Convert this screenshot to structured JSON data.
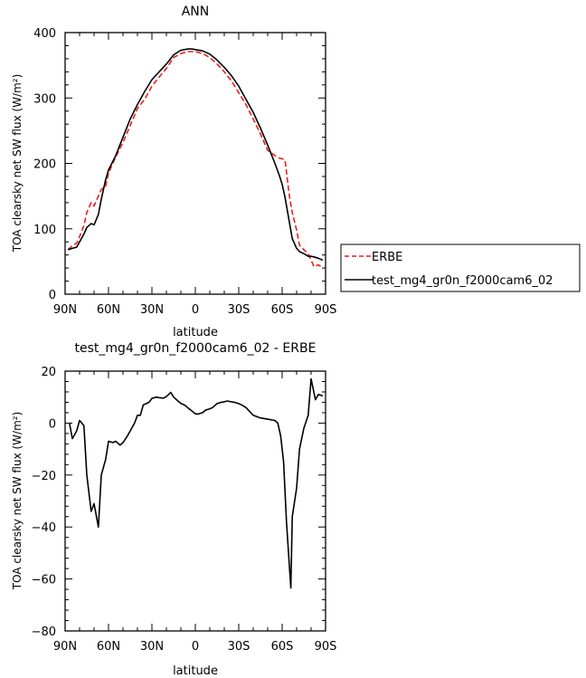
{
  "chart_data": [
    {
      "type": "line",
      "title": "ANN",
      "xlabel": "latitude",
      "ylabel": "TOA clearsky net SW flux (W/m²)",
      "xlim": [
        90,
        -90
      ],
      "ylim": [
        0,
        400
      ],
      "xticks": [
        90,
        60,
        30,
        0,
        -30,
        -60,
        -90
      ],
      "xtick_labels": [
        "90N",
        "60N",
        "30N",
        "0",
        "30S",
        "60S",
        "90S"
      ],
      "yticks": [
        0,
        100,
        200,
        300,
        400
      ],
      "ytick_labels": [
        "0",
        "100",
        "200",
        "300",
        "400"
      ],
      "legend_position": "right",
      "series": [
        {
          "name": "ERBE",
          "color": "#e8201c",
          "dash": "dashed",
          "x": [
            88,
            85,
            82,
            80,
            77,
            75,
            72,
            70,
            67,
            65,
            62,
            60,
            55,
            50,
            45,
            40,
            35,
            30,
            25,
            20,
            15,
            10,
            5,
            0,
            -5,
            -10,
            -15,
            -20,
            -25,
            -30,
            -35,
            -40,
            -45,
            -50,
            -55,
            -58,
            -60,
            -62,
            -65,
            -67,
            -70,
            -72,
            -75,
            -78,
            -80,
            -82,
            -85,
            -88
          ],
          "y": [
            68,
            74,
            78,
            88,
            105,
            125,
            140,
            135,
            150,
            160,
            165,
            185,
            210,
            232,
            258,
            284,
            298,
            318,
            332,
            345,
            362,
            368,
            371,
            371,
            368,
            362,
            352,
            340,
            326,
            308,
            290,
            268,
            245,
            220,
            212,
            208,
            207,
            205,
            150,
            125,
            98,
            75,
            68,
            62,
            52,
            42,
            45,
            40
          ]
        },
        {
          "name": "test_mg4_gr0n_f2000cam6_02",
          "color": "#000000",
          "dash": "solid",
          "x": [
            88,
            85,
            82,
            80,
            77,
            75,
            72,
            70,
            67,
            65,
            62,
            60,
            55,
            50,
            45,
            40,
            35,
            30,
            25,
            20,
            15,
            10,
            5,
            2,
            0,
            -5,
            -10,
            -15,
            -20,
            -25,
            -30,
            -35,
            -40,
            -45,
            -50,
            -55,
            -58,
            -60,
            -62,
            -65,
            -67,
            -70,
            -72,
            -75,
            -78,
            -80,
            -82,
            -85,
            -88
          ],
          "y": [
            68,
            70,
            72,
            80,
            92,
            102,
            108,
            106,
            122,
            145,
            175,
            190,
            212,
            240,
            268,
            290,
            310,
            328,
            340,
            352,
            366,
            373,
            375,
            375,
            374,
            372,
            367,
            358,
            347,
            334,
            318,
            298,
            278,
            254,
            228,
            200,
            182,
            168,
            148,
            110,
            85,
            70,
            65,
            62,
            58,
            58,
            57,
            55,
            52
          ]
        }
      ]
    },
    {
      "type": "line",
      "title": "test_mg4_gr0n_f2000cam6_02 - ERBE",
      "xlabel": "latitude",
      "ylabel": "TOA clearsky net SW flux (W/m²)",
      "xlim": [
        90,
        -90
      ],
      "ylim": [
        -80,
        20
      ],
      "xticks": [
        90,
        60,
        30,
        0,
        -30,
        -60,
        -90
      ],
      "xtick_labels": [
        "90N",
        "60N",
        "30N",
        "0",
        "30S",
        "60S",
        "90S"
      ],
      "yticks": [
        -80,
        -60,
        -40,
        -20,
        0,
        20
      ],
      "ytick_labels": [
        "−80",
        "−60",
        "−40",
        "−20",
        "0",
        "20"
      ],
      "series": [
        {
          "color": "#000000",
          "dash": "solid",
          "x": [
            87,
            85,
            82,
            80,
            77,
            75,
            72,
            70,
            67,
            65,
            62,
            60,
            57,
            55,
            52,
            50,
            47,
            45,
            42,
            40,
            38,
            36,
            34,
            32,
            30,
            27,
            25,
            22,
            20,
            17,
            15,
            12,
            10,
            7,
            5,
            2,
            0,
            -2,
            -5,
            -7,
            -10,
            -12,
            -15,
            -18,
            -20,
            -22,
            -25,
            -27,
            -30,
            -32,
            -35,
            -40,
            -45,
            -50,
            -55,
            -57,
            -59,
            -61,
            -63,
            -65,
            -66,
            -67,
            -70,
            -72,
            -75,
            -78,
            -80,
            -83,
            -85,
            -88
          ],
          "y": [
            0,
            -6,
            -3,
            1,
            -1,
            -20,
            -34,
            -31,
            -40,
            -20,
            -14,
            -7,
            -7.5,
            -7,
            -8.5,
            -7.5,
            -5,
            -3,
            0,
            3,
            3,
            7,
            7.5,
            8,
            9.5,
            10,
            9.8,
            9.6,
            10.2,
            11.8,
            10,
            8.5,
            7.6,
            6.8,
            5.8,
            4.5,
            3.6,
            3.5,
            4,
            5,
            5.5,
            6,
            7.5,
            8,
            8.2,
            8.5,
            8.2,
            8,
            7.5,
            7,
            6,
            3,
            2,
            1.5,
            1,
            0,
            -5,
            -15,
            -38,
            -55,
            -63.5,
            -36,
            -25,
            -10,
            -2,
            3,
            17,
            9,
            11,
            10.5
          ]
        }
      ]
    }
  ]
}
